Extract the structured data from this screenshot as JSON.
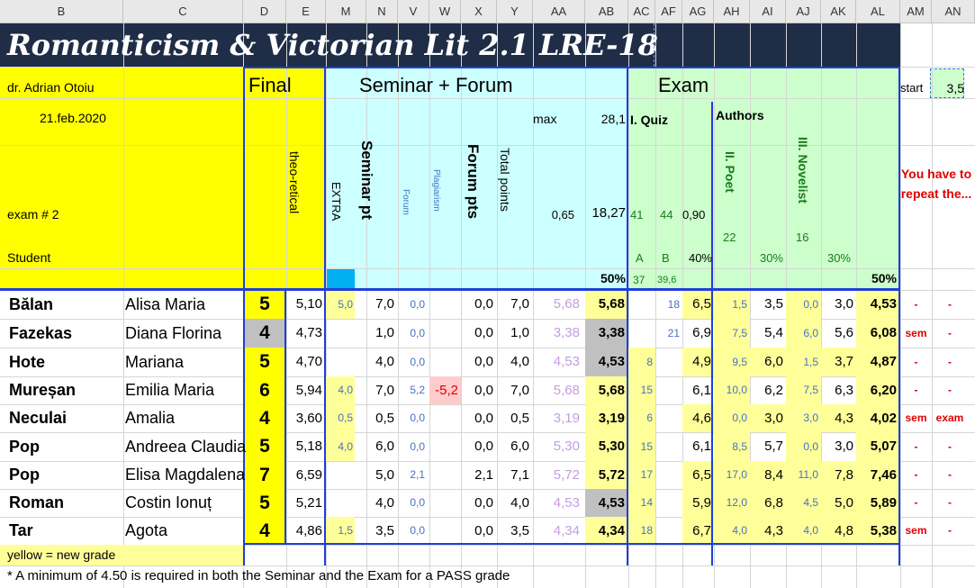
{
  "columns": [
    "B",
    "C",
    "D",
    "E",
    "M",
    "N",
    "V",
    "W",
    "X",
    "Y",
    "AA",
    "AB",
    "AC",
    "AF",
    "AG",
    "AH",
    "AI",
    "AJ",
    "AK",
    "AL",
    "AM",
    "AN"
  ],
  "title": "Romanticism & Victorian Lit 2.1 LRE-18",
  "header": {
    "teacher": "dr. Adrian Otoiu",
    "date": "21.feb.2020",
    "exam_no": "exam # 2",
    "student_label": "Student",
    "final_label": "Final",
    "theoretical_label": "theo-retical",
    "seminar_forum_label": "Seminar + Forum",
    "exam_label": "Exam",
    "extra_label": "EXTRA",
    "seminar_pt_label": "Seminar pt",
    "forum_label": "Forum",
    "plagiarism_label": "Plagiarism",
    "forum_pts_label": "Forum pts",
    "total_points_label": "Total points",
    "max_label": "max",
    "max_value": "28,1",
    "ratio": "0,65",
    "points_total": "18,27",
    "sem_pct": "50%",
    "quiz_label": "I. Quiz",
    "authors_label": "Authors",
    "poet_label": "II. Poet",
    "novelist_label": "III. Novelist",
    "quiz_41": "41",
    "quiz_44": "44",
    "quiz_090": "0,90",
    "quiz_A": "A",
    "quiz_B": "B",
    "quiz_37": "37",
    "quiz_396": "39,6",
    "quiz_pct": "40%",
    "poet_22": "22",
    "poet_pct": "30%",
    "nov_16": "16",
    "nov_pct": "30%",
    "exam_pct": "50%",
    "start_label": "start",
    "start_value": "3,5",
    "repeat_label": "You have to repeat the..."
  },
  "students": [
    {
      "last": "Bălan",
      "first": "Alisa Maria",
      "final": "5",
      "theo": "5,10",
      "extra": "5,0",
      "sem": "7,0",
      "forum": "0,0",
      "plag": "",
      "forum_pts": "0,0",
      "total": "7,0",
      "sem_grade": "5,68",
      "sem_ab": "5,68",
      "quiz_a": "",
      "quiz_b": "18",
      "quiz": "6,5",
      "poet_raw": "1,5",
      "poet": "3,5",
      "nov_raw": "0,0",
      "nov": "3,0",
      "exam": "4,53",
      "rep_sem": "-",
      "rep_exam": "-"
    },
    {
      "last": "Fazekas",
      "first": "Diana Florina",
      "final": "4",
      "theo": "4,73",
      "extra": "",
      "sem": "1,0",
      "forum": "0,0",
      "plag": "",
      "forum_pts": "0,0",
      "total": "1,0",
      "sem_grade": "3,38",
      "sem_ab": "3,38",
      "quiz_a": "",
      "quiz_b": "21",
      "quiz": "6,9",
      "poet_raw": "7,5",
      "poet": "5,4",
      "nov_raw": "6,0",
      "nov": "5,6",
      "exam": "6,08",
      "rep_sem": "sem",
      "rep_exam": "-"
    },
    {
      "last": "Hote",
      "first": "Mariana",
      "final": "5",
      "theo": "4,70",
      "extra": "",
      "sem": "4,0",
      "forum": "0,0",
      "plag": "",
      "forum_pts": "0,0",
      "total": "4,0",
      "sem_grade": "4,53",
      "sem_ab": "4,53",
      "quiz_a": "8",
      "quiz_b": "",
      "quiz": "4,9",
      "poet_raw": "9,5",
      "poet": "6,0",
      "nov_raw": "1,5",
      "nov": "3,7",
      "exam": "4,87",
      "rep_sem": "-",
      "rep_exam": "-"
    },
    {
      "last": "Mureșan",
      "first": "Emilia Maria",
      "final": "6",
      "theo": "5,94",
      "extra": "4,0",
      "sem": "7,0",
      "forum": "5,2",
      "plag": "-5,2",
      "forum_pts": "0,0",
      "total": "7,0",
      "sem_grade": "5,68",
      "sem_ab": "5,68",
      "quiz_a": "15",
      "quiz_b": "",
      "quiz": "6,1",
      "poet_raw": "10,0",
      "poet": "6,2",
      "nov_raw": "7,5",
      "nov": "6,3",
      "exam": "6,20",
      "rep_sem": "-",
      "rep_exam": "-"
    },
    {
      "last": "Neculai",
      "first": "Amalia",
      "final": "4",
      "theo": "3,60",
      "extra": "0,5",
      "sem": "0,5",
      "forum": "0,0",
      "plag": "",
      "forum_pts": "0,0",
      "total": "0,5",
      "sem_grade": "3,19",
      "sem_ab": "3,19",
      "quiz_a": "6",
      "quiz_b": "",
      "quiz": "4,6",
      "poet_raw": "0,0",
      "poet": "3,0",
      "nov_raw": "3,0",
      "nov": "4,3",
      "exam": "4,02",
      "rep_sem": "sem",
      "rep_exam": "exam"
    },
    {
      "last": "Pop",
      "first": "Andreea Claudia",
      "final": "5",
      "theo": "5,18",
      "extra": "4,0",
      "sem": "6,0",
      "forum": "0,0",
      "plag": "",
      "forum_pts": "0,0",
      "total": "6,0",
      "sem_grade": "5,30",
      "sem_ab": "5,30",
      "quiz_a": "15",
      "quiz_b": "",
      "quiz": "6,1",
      "poet_raw": "8,5",
      "poet": "5,7",
      "nov_raw": "0,0",
      "nov": "3,0",
      "exam": "5,07",
      "rep_sem": "-",
      "rep_exam": "-"
    },
    {
      "last": "Pop",
      "first": "Elisa Magdalena",
      "final": "7",
      "theo": "6,59",
      "extra": "",
      "sem": "5,0",
      "forum": "2,1",
      "plag": "",
      "forum_pts": "2,1",
      "total": "7,1",
      "sem_grade": "5,72",
      "sem_ab": "5,72",
      "quiz_a": "17",
      "quiz_b": "",
      "quiz": "6,5",
      "poet_raw": "17,0",
      "poet": "8,4",
      "nov_raw": "11,0",
      "nov": "7,8",
      "exam": "7,46",
      "rep_sem": "-",
      "rep_exam": "-"
    },
    {
      "last": "Roman",
      "first": "Costin Ionuț",
      "final": "5",
      "theo": "5,21",
      "extra": "",
      "sem": "4,0",
      "forum": "0,0",
      "plag": "",
      "forum_pts": "0,0",
      "total": "4,0",
      "sem_grade": "4,53",
      "sem_ab": "4,53",
      "quiz_a": "14",
      "quiz_b": "",
      "quiz": "5,9",
      "poet_raw": "12,0",
      "poet": "6,8",
      "nov_raw": "4,5",
      "nov": "5,0",
      "exam": "5,89",
      "rep_sem": "-",
      "rep_exam": "-"
    },
    {
      "last": "Tar",
      "first": "Agota",
      "final": "4",
      "theo": "4,86",
      "extra": "1,5",
      "sem": "3,5",
      "forum": "0,0",
      "plag": "",
      "forum_pts": "0,0",
      "total": "3,5",
      "sem_grade": "4,34",
      "sem_ab": "4,34",
      "quiz_a": "18",
      "quiz_b": "",
      "quiz": "6,7",
      "poet_raw": "4,0",
      "poet": "4,3",
      "nov_raw": "4,0",
      "nov": "4,8",
      "exam": "5,38",
      "rep_sem": "sem",
      "rep_exam": "-"
    }
  ],
  "footer": {
    "legend": "yellow = new grade",
    "note": "* A minimum of 4.50 is required in both the Seminar and the Exam for a PASS grade"
  },
  "colors": {
    "yellow": "#ffff00",
    "cyan": "#ccffff",
    "green": "#ccffcc",
    "navy": "#1f2d47",
    "blue_border": "#1f3fd8",
    "gray": "#c0c0c0",
    "light_yellow": "#ffff99"
  }
}
